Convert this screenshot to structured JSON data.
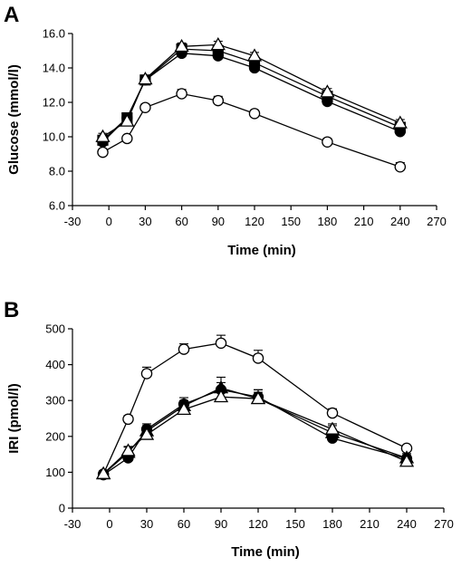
{
  "chart_data": [
    {
      "panel": "A",
      "type": "line",
      "xlabel": "Time (min)",
      "ylabel": "Glucose (mmol/l)",
      "xlim": [
        -30,
        270
      ],
      "ylim": [
        6.0,
        16.0
      ],
      "xticks": [
        "-30",
        "0",
        "30",
        "60",
        "90",
        "120",
        "150",
        "180",
        "210",
        "240",
        "270"
      ],
      "yticks": [
        "6.0",
        "8.0",
        "10.0",
        "12.0",
        "14.0",
        "16.0"
      ],
      "grid": false,
      "legend": "none",
      "x": [
        -5,
        15,
        30,
        60,
        90,
        120,
        180,
        240
      ],
      "series": [
        {
          "marker": "open-circle",
          "values": [
            9.1,
            9.9,
            11.7,
            12.5,
            12.1,
            11.35,
            9.7,
            8.25
          ],
          "errors": [
            0.15,
            0.15,
            0.2,
            0.25,
            0.25,
            0.2,
            0.2,
            0.25
          ]
        },
        {
          "marker": "filled-circle",
          "values": [
            9.7,
            11.1,
            13.3,
            14.85,
            14.7,
            14.0,
            12.05,
            10.3
          ],
          "errors": [
            0.2,
            0.2,
            0.2,
            0.2,
            0.25,
            0.25,
            0.2,
            0.2
          ]
        },
        {
          "marker": "filled-square",
          "values": [
            9.8,
            11.1,
            13.3,
            15.1,
            15.0,
            14.3,
            12.35,
            10.55
          ],
          "errors": [
            0.2,
            0.2,
            0.2,
            0.2,
            0.2,
            0.2,
            0.2,
            0.2
          ]
        },
        {
          "marker": "open-triangle",
          "values": [
            10.0,
            10.9,
            13.35,
            15.25,
            15.35,
            14.7,
            12.6,
            10.8
          ],
          "errors": [
            0.2,
            0.2,
            0.2,
            0.2,
            0.2,
            0.2,
            0.2,
            0.2
          ]
        }
      ]
    },
    {
      "panel": "B",
      "type": "line",
      "xlabel": "Time (min)",
      "ylabel": "IRI (pmol/l)",
      "xlim": [
        -30,
        270
      ],
      "ylim": [
        0,
        500
      ],
      "xticks": [
        "-30",
        "0",
        "30",
        "60",
        "90",
        "120",
        "150",
        "180",
        "210",
        "240",
        "270"
      ],
      "yticks": [
        "0",
        "100",
        "200",
        "300",
        "400",
        "500"
      ],
      "grid": false,
      "legend": "none",
      "x": [
        -5,
        15,
        30,
        60,
        90,
        120,
        180,
        240
      ],
      "series": [
        {
          "marker": "open-circle",
          "values": [
            95,
            248,
            375,
            443,
            460,
            418,
            265,
            167
          ],
          "errors": [
            8,
            10,
            18,
            15,
            22,
            22,
            12,
            8
          ]
        },
        {
          "marker": "filled-circle",
          "values": [
            93,
            140,
            220,
            290,
            330,
            310,
            195,
            138
          ],
          "errors": [
            8,
            10,
            15,
            18,
            20,
            20,
            15,
            10
          ]
        },
        {
          "marker": "filled-triangle",
          "values": [
            95,
            155,
            215,
            285,
            335,
            305,
            210,
            140
          ],
          "errors": [
            8,
            15,
            15,
            15,
            30,
            25,
            20,
            12
          ]
        },
        {
          "marker": "open-triangle",
          "values": [
            96,
            160,
            205,
            275,
            310,
            305,
            220,
            130
          ],
          "errors": [
            8,
            12,
            15,
            15,
            20,
            18,
            15,
            10
          ]
        }
      ]
    }
  ]
}
